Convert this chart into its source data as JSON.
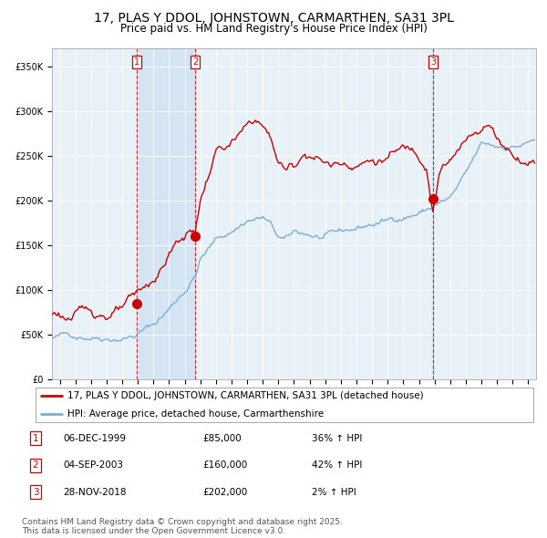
{
  "title": "17, PLAS Y DDOL, JOHNSTOWN, CARMARTHEN, SA31 3PL",
  "subtitle": "Price paid vs. HM Land Registry's House Price Index (HPI)",
  "legend_line1": "17, PLAS Y DDOL, JOHNSTOWN, CARMARTHEN, SA31 3PL (detached house)",
  "legend_line2": "HPI: Average price, detached house, Carmarthenshire",
  "transactions": [
    {
      "num": 1,
      "date": "06-DEC-1999",
      "price": 85000,
      "change": "36% ↑ HPI",
      "x_year": 1999.92
    },
    {
      "num": 2,
      "date": "04-SEP-2003",
      "price": 160000,
      "change": "42% ↑ HPI",
      "x_year": 2003.67
    },
    {
      "num": 3,
      "date": "28-NOV-2018",
      "price": 202000,
      "change": "2% ↑ HPI",
      "x_year": 2018.9
    }
  ],
  "footer": "Contains HM Land Registry data © Crown copyright and database right 2025.\nThis data is licensed under the Open Government Licence v3.0.",
  "line_color_red": "#cc0000",
  "line_color_blue": "#7bafd4",
  "vline_color": "#cc0000",
  "background_color": "#dce9f5",
  "shade_color": "#c8dcf0",
  "plot_bg": "#e8f0f8",
  "ylim": [
    0,
    370000
  ],
  "xlim_start": 1994.5,
  "xlim_end": 2025.5,
  "yticks": [
    0,
    50000,
    100000,
    150000,
    200000,
    250000,
    300000,
    350000
  ],
  "ytick_labels": [
    "£0",
    "£50K",
    "£100K",
    "£150K",
    "£200K",
    "£250K",
    "£300K",
    "£350K"
  ],
  "xticks": [
    1995,
    1996,
    1997,
    1998,
    1999,
    2000,
    2001,
    2002,
    2003,
    2004,
    2005,
    2006,
    2007,
    2008,
    2009,
    2010,
    2011,
    2012,
    2013,
    2014,
    2015,
    2016,
    2017,
    2018,
    2019,
    2020,
    2021,
    2022,
    2023,
    2024,
    2025
  ],
  "title_fontsize": 10,
  "subtitle_fontsize": 8.5,
  "tick_fontsize": 7,
  "legend_fontsize": 7.5,
  "footer_fontsize": 6.5,
  "shade_between_1_2": true,
  "shade_around_3": true
}
